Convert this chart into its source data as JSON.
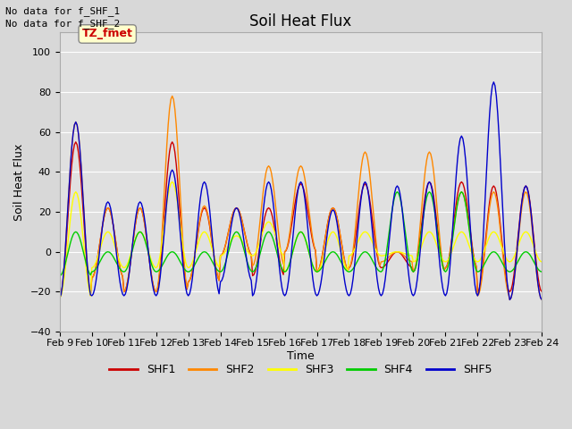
{
  "title": "Soil Heat Flux",
  "xlabel": "Time",
  "ylabel": "Soil Heat Flux",
  "ylim": [
    -40,
    110
  ],
  "yticks": [
    -40,
    -20,
    0,
    20,
    40,
    60,
    80,
    100
  ],
  "annotation_text": "No data for f_SHF_1\nNo data for f_SHF_2",
  "tz_label": "TZ_fmet",
  "x_labels": [
    "Feb 9",
    "Feb 10",
    "Feb 11",
    "Feb 12",
    "Feb 13",
    "Feb 14",
    "Feb 15",
    "Feb 16",
    "Feb 17",
    "Feb 18",
    "Feb 19",
    "Feb 20",
    "Feb 21",
    "Feb 22",
    "Feb 23",
    "Feb 24"
  ],
  "legend_entries": [
    "SHF1",
    "SHF2",
    "SHF3",
    "SHF4",
    "SHF5"
  ],
  "line_colors": [
    "#cc0000",
    "#ff8800",
    "#ffff00",
    "#00cc00",
    "#0000cc"
  ],
  "background_color": "#d8d8d8",
  "plot_bg_color": "#dcdcdc",
  "figsize": [
    6.4,
    4.8
  ],
  "dpi": 100
}
